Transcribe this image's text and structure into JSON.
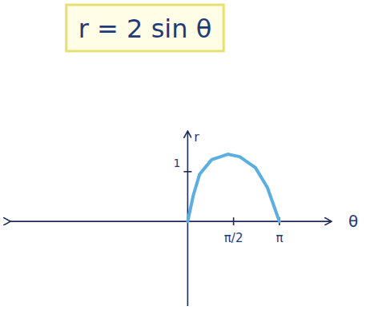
{
  "chart_data": {
    "type": "line",
    "title": "r = 2 sin θ",
    "x_label": "θ",
    "y_label": "r",
    "x": [
      0,
      0.19,
      0.41,
      0.82,
      1.37,
      1.78,
      2.32,
      2.73,
      3.14
    ],
    "values": [
      0,
      0.52,
      0.95,
      1.24,
      1.35,
      1.3,
      1.08,
      0.68,
      0
    ],
    "color": "#5aaee0",
    "xlim": [
      -6.1,
      4.9
    ],
    "ylim": [
      -1.7,
      1.8
    ],
    "xticks": [
      {
        "value": 1.5708,
        "label": "π/2"
      },
      {
        "value": 3.1416,
        "label": "π"
      }
    ],
    "yticks": [
      1
    ],
    "grid": false
  }
}
